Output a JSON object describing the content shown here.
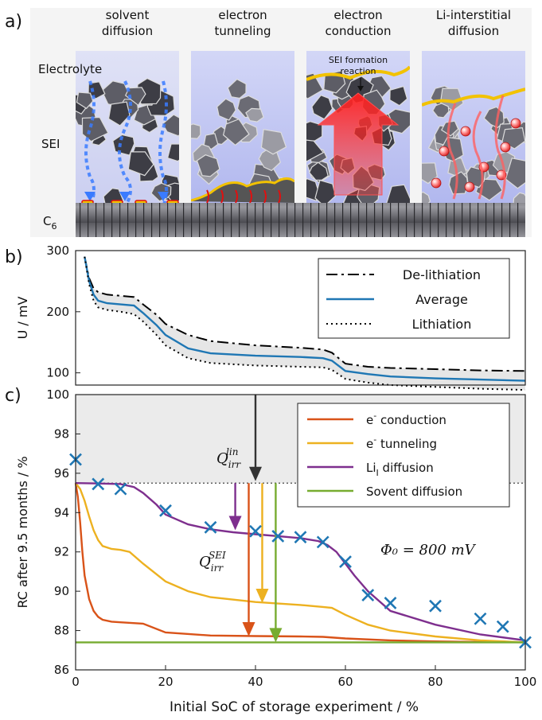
{
  "panel_a": {
    "label": "a)",
    "mechanisms": [
      "solvent\ndiffusion",
      "electron\ntunneling",
      "electron\nconduction",
      "Li-interstitial\ndiffusion"
    ],
    "layers": {
      "electrolyte": "Electrolyte",
      "sei": "SEI",
      "c6": "C",
      "c6_sub": "6"
    },
    "callout": "SEI formation\nreaction",
    "colors": {
      "electrolyte": "#b9c0f0",
      "sei_dark": "#3f3f47",
      "sei_light": "#8d8d95",
      "red_arrow": "#ff2a2a",
      "blue_path": "#3a7bff"
    }
  },
  "chart_data": [
    {
      "type": "line",
      "panel": "b)",
      "title": "",
      "xlabel": "",
      "ylabel": "U / mV",
      "xlim": [
        0,
        100
      ],
      "ylim": [
        80,
        300
      ],
      "yticks": [
        100,
        200,
        300
      ],
      "legend": {
        "placement": "top-right"
      },
      "series": [
        {
          "name": "De-lithiation",
          "style": "dashdot",
          "color": "#000000",
          "x": [
            2,
            3,
            4,
            5,
            7,
            10,
            13,
            15,
            18,
            20,
            25,
            30,
            40,
            50,
            55,
            57,
            60,
            65,
            70,
            80,
            90,
            100
          ],
          "y": [
            290,
            255,
            238,
            232,
            228,
            226,
            224,
            212,
            195,
            180,
            162,
            152,
            145,
            141,
            138,
            133,
            115,
            110,
            108,
            106,
            104,
            103
          ]
        },
        {
          "name": "Average",
          "style": "solid",
          "color": "#1f77b4",
          "x": [
            2,
            3,
            4,
            5,
            7,
            10,
            13,
            15,
            18,
            20,
            25,
            30,
            40,
            50,
            55,
            57,
            60,
            65,
            70,
            80,
            90,
            100
          ],
          "y": [
            290,
            250,
            228,
            218,
            214,
            212,
            210,
            198,
            178,
            162,
            140,
            132,
            128,
            126,
            124,
            120,
            103,
            98,
            94,
            91,
            89,
            87
          ]
        },
        {
          "name": "Lithiation",
          "style": "dotted",
          "color": "#000000",
          "x": [
            2,
            3,
            4,
            5,
            7,
            10,
            13,
            15,
            18,
            20,
            25,
            30,
            40,
            50,
            55,
            57,
            60,
            65,
            70,
            80,
            90,
            100
          ],
          "y": [
            290,
            245,
            218,
            207,
            203,
            200,
            196,
            184,
            162,
            145,
            124,
            116,
            112,
            110,
            109,
            105,
            90,
            84,
            80,
            77,
            74,
            72
          ]
        }
      ]
    },
    {
      "type": "line",
      "panel": "c)",
      "title": "",
      "xlabel": "Initial SoC of storage experiment / %",
      "ylabel": "RC after 9.5 months / %",
      "xlim": [
        0,
        100
      ],
      "ylim": [
        86,
        100
      ],
      "xticks": [
        0,
        20,
        40,
        60,
        80,
        100
      ],
      "yticks": [
        86,
        88,
        90,
        92,
        94,
        96,
        98,
        100
      ],
      "legend": {
        "placement": "top-right"
      },
      "annotation_phi": "Φ₀ = 800 mV",
      "annotation_q_lin": "Q",
      "annotation_q_lin_sub": "irr",
      "annotation_q_lin_sup": "lin",
      "annotation_q_sei": "Q",
      "annotation_q_sei_sub": "irr",
      "annotation_q_sei_sup": "SEI",
      "reference_line_y": 95.5,
      "series": [
        {
          "name": "e- conduction",
          "legend_base": "e",
          "legend_sup": "-",
          "legend_rest": " conduction",
          "color": "#d95319",
          "x": [
            0,
            0.5,
            1,
            1.5,
            2,
            3,
            4,
            5,
            6,
            8,
            10,
            15,
            20,
            30,
            40,
            50,
            55,
            60,
            70,
            80,
            90,
            100
          ],
          "y": [
            95.5,
            94.8,
            93.5,
            92.0,
            90.8,
            89.6,
            89.0,
            88.7,
            88.55,
            88.45,
            88.42,
            88.35,
            87.9,
            87.75,
            87.72,
            87.7,
            87.68,
            87.6,
            87.5,
            87.45,
            87.42,
            87.4
          ]
        },
        {
          "name": "e- tunneling",
          "legend_base": "e",
          "legend_sup": "-",
          "legend_rest": " tunneling",
          "color": "#edb120",
          "x": [
            0,
            1,
            2,
            3,
            4,
            5,
            6,
            8,
            10,
            12,
            15,
            20,
            25,
            30,
            40,
            50,
            55,
            57,
            60,
            65,
            70,
            80,
            90,
            100
          ],
          "y": [
            95.5,
            95.2,
            94.6,
            93.8,
            93.1,
            92.6,
            92.3,
            92.15,
            92.1,
            92.0,
            91.4,
            90.5,
            90.0,
            89.7,
            89.45,
            89.3,
            89.2,
            89.15,
            88.8,
            88.3,
            88.0,
            87.7,
            87.5,
            87.4
          ]
        },
        {
          "name": "LiI diffusion",
          "legend_base": "Li",
          "legend_sub": "I",
          "legend_rest": " diffusion",
          "color": "#7e2f8e",
          "x": [
            0,
            5,
            10,
            13,
            15,
            18,
            20,
            25,
            30,
            35,
            40,
            45,
            50,
            54,
            56,
            58,
            60,
            62,
            65,
            70,
            80,
            90,
            100
          ],
          "y": [
            95.5,
            95.48,
            95.45,
            95.3,
            95.0,
            94.4,
            93.9,
            93.4,
            93.15,
            93.0,
            92.9,
            92.8,
            92.7,
            92.55,
            92.35,
            92.0,
            91.4,
            90.8,
            90.0,
            89.0,
            88.3,
            87.8,
            87.5
          ]
        },
        {
          "name": "Sovent diffusion",
          "legend_base": "Sovent diffusion",
          "legend_rest": "",
          "color": "#77ac30",
          "x": [
            0,
            100
          ],
          "y": [
            87.4,
            87.4
          ]
        },
        {
          "name": "measured",
          "type": "scatter",
          "marker": "x",
          "color": "#1f77b4",
          "x": [
            0,
            5,
            10,
            20,
            30,
            40,
            45,
            50,
            55,
            60,
            65,
            70,
            80,
            90,
            95,
            100
          ],
          "y": [
            96.7,
            95.45,
            95.2,
            94.1,
            93.25,
            93.05,
            92.8,
            92.75,
            92.5,
            91.5,
            89.8,
            89.4,
            89.25,
            88.6,
            88.2,
            87.4
          ]
        }
      ],
      "arrows": [
        {
          "id": "q-lin-arrow",
          "x": 40,
          "y_from": 100,
          "y_to": 95.6,
          "color": "#333333"
        },
        {
          "id": "lii-arrow",
          "x": 35.5,
          "y_from": 95.5,
          "y_to": 93.1,
          "color": "#7e2f8e"
        },
        {
          "id": "conduction-arrow",
          "x": 38.5,
          "y_from": 95.5,
          "y_to": 87.7,
          "color": "#d95319"
        },
        {
          "id": "tunneling-arrow",
          "x": 41.5,
          "y_from": 95.5,
          "y_to": 89.4,
          "color": "#edb120"
        },
        {
          "id": "solvent-arrow",
          "x": 44.5,
          "y_from": 95.5,
          "y_to": 87.4,
          "color": "#77ac30"
        }
      ]
    }
  ]
}
